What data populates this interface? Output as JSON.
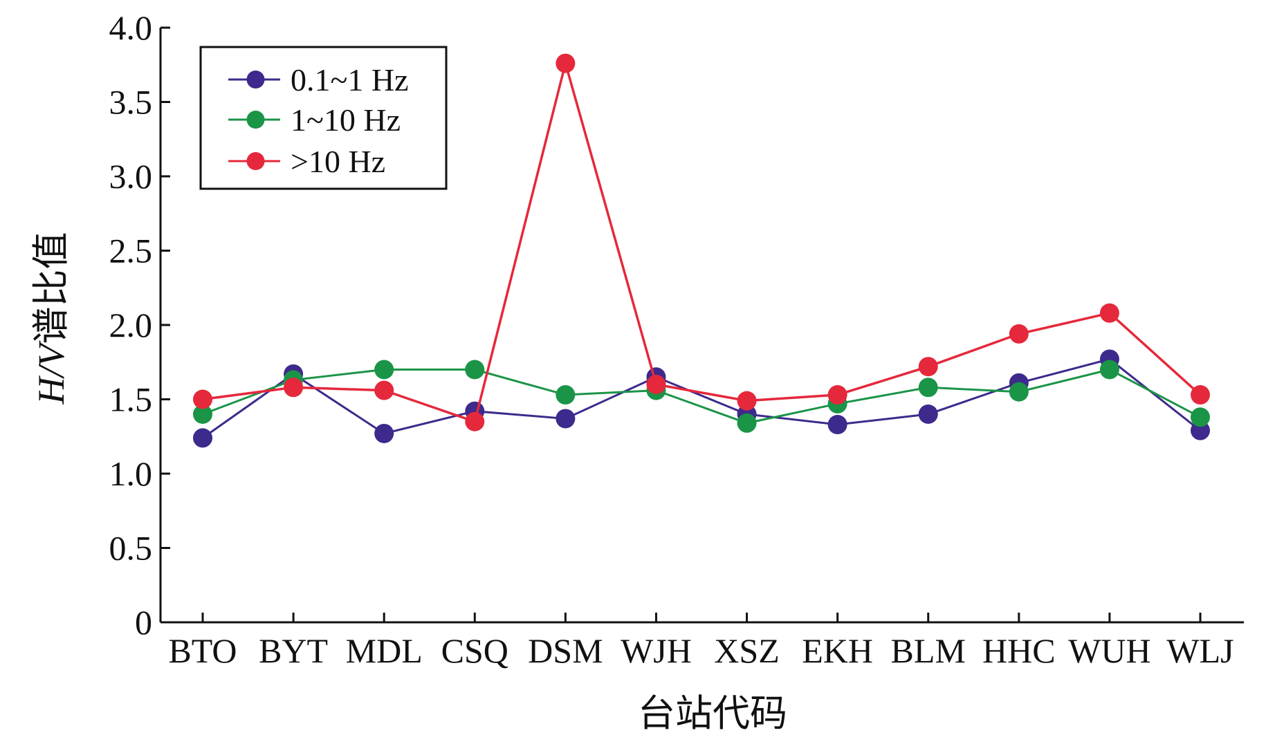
{
  "chart_data": {
    "type": "line",
    "title": "",
    "xlabel": "台站代码",
    "ylabel_italic": "H/V",
    "ylabel_rest": "谱比值",
    "ylim": [
      0,
      4.0
    ],
    "yticks": [
      0,
      0.5,
      1.0,
      1.5,
      2.0,
      2.5,
      3.0,
      3.5,
      4.0
    ],
    "ytick_labels": [
      "0",
      "0.5",
      "1.0",
      "1.5",
      "2.0",
      "2.5",
      "3.0",
      "3.5",
      "4.0"
    ],
    "categories": [
      "BTO",
      "BYT",
      "MDL",
      "CSQ",
      "DSM",
      "WJH",
      "XSZ",
      "EKH",
      "BLM",
      "HHC",
      "WUH",
      "WLJ"
    ],
    "legend_position": "top-left",
    "series": [
      {
        "name": "0.1~1 Hz",
        "color": "#3d2a8c",
        "values": [
          1.24,
          1.67,
          1.27,
          1.42,
          1.37,
          1.65,
          1.4,
          1.33,
          1.4,
          1.61,
          1.77,
          1.29
        ]
      },
      {
        "name": "1~10 Hz",
        "color": "#1a9447",
        "values": [
          1.4,
          1.63,
          1.7,
          1.7,
          1.53,
          1.56,
          1.34,
          1.47,
          1.58,
          1.55,
          1.7,
          1.38
        ]
      },
      {
        "name": ">10 Hz",
        "color": "#e5283b",
        "values": [
          1.5,
          1.58,
          1.56,
          1.35,
          3.76,
          1.6,
          1.49,
          1.53,
          1.72,
          1.94,
          2.08,
          1.53
        ]
      }
    ]
  }
}
